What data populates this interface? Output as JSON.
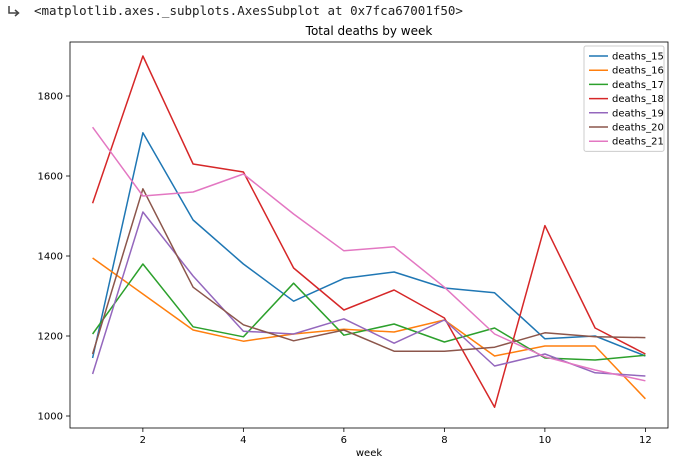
{
  "output": {
    "repr_text": "<matplotlib.axes._subplots.AxesSubplot at 0x7fca67001f50>",
    "icon": "output-arrow-icon"
  },
  "chart_data": {
    "type": "line",
    "title": "Total deaths by week",
    "xlabel": "week",
    "ylabel": "",
    "xlim": [
      0.55,
      12.45
    ],
    "ylim": [
      970,
      1935
    ],
    "xticks": [
      2,
      4,
      6,
      8,
      10,
      12
    ],
    "yticks": [
      1000,
      1200,
      1400,
      1600,
      1800
    ],
    "grid": false,
    "legend_position": "top-right",
    "x": [
      1,
      2,
      3,
      4,
      5,
      6,
      7,
      8,
      9,
      10,
      11,
      12
    ],
    "series": [
      {
        "name": "deaths_15",
        "color": "#1f77b4",
        "values": [
          1145,
          1708,
          1490,
          1380,
          1287,
          1344,
          1360,
          1320,
          1308,
          1193,
          1200,
          1150
        ]
      },
      {
        "name": "deaths_16",
        "color": "#ff7f0e",
        "values": [
          1395,
          1305,
          1215,
          1187,
          1205,
          1217,
          1210,
          1240,
          1150,
          1175,
          1175,
          1043
        ]
      },
      {
        "name": "deaths_17",
        "color": "#2ca02c",
        "values": [
          1205,
          1380,
          1223,
          1198,
          1332,
          1202,
          1230,
          1185,
          1220,
          1145,
          1140,
          1152
        ]
      },
      {
        "name": "deaths_18",
        "color": "#d62728",
        "values": [
          1532,
          1900,
          1630,
          1610,
          1370,
          1265,
          1315,
          1245,
          1022,
          1476,
          1220,
          1155
        ]
      },
      {
        "name": "deaths_19",
        "color": "#9467bd",
        "values": [
          1105,
          1510,
          1350,
          1212,
          1205,
          1243,
          1182,
          1240,
          1125,
          1155,
          1108,
          1100
        ]
      },
      {
        "name": "deaths_20",
        "color": "#8c564b",
        "values": [
          1155,
          1568,
          1322,
          1228,
          1188,
          1215,
          1162,
          1162,
          1172,
          1208,
          1198,
          1196
        ]
      },
      {
        "name": "deaths_21",
        "color": "#e377c2",
        "values": [
          1722,
          1550,
          1560,
          1605,
          1505,
          1413,
          1423,
          1322,
          1205,
          1148,
          1115,
          1088
        ]
      }
    ]
  }
}
